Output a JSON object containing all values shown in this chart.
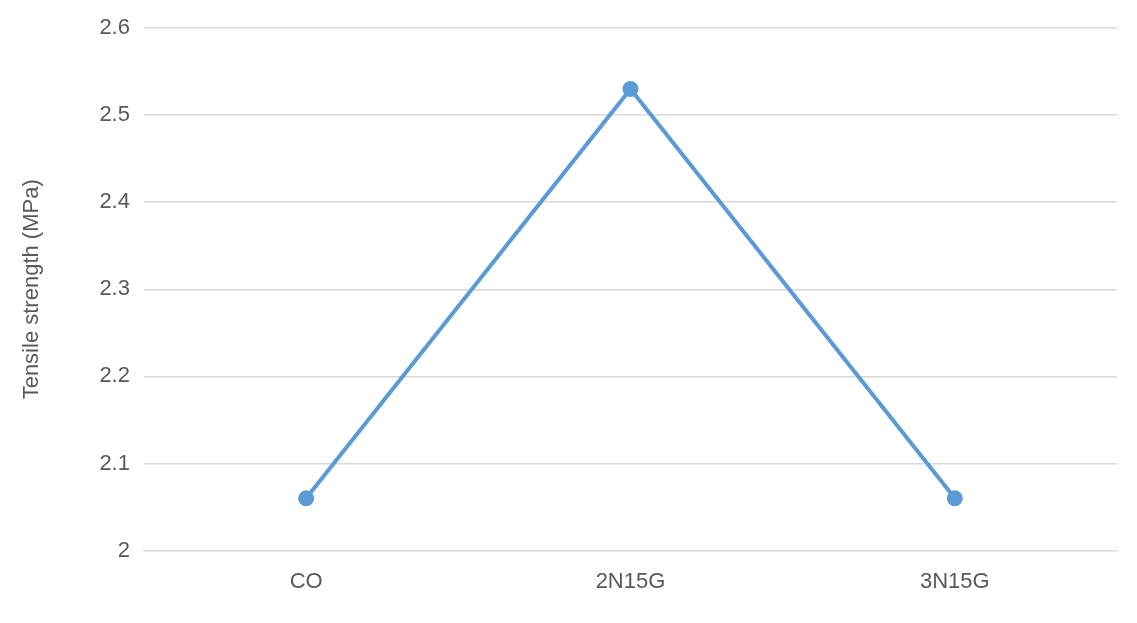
{
  "chart_data": {
    "type": "line",
    "ylabel": "Tensile strength (MPa)",
    "categories": [
      "CO",
      "2N15G",
      "3N15G"
    ],
    "series": [
      {
        "color": "#5b9bd5",
        "values": [
          2.06,
          2.53,
          2.06
        ]
      }
    ],
    "ylim": [
      2,
      2.6
    ],
    "yticks": [
      2,
      2.1,
      2.2,
      2.3,
      2.4,
      2.5,
      2.6
    ],
    "grid": "y",
    "legend": false,
    "marker": "circle",
    "line_style": "solid"
  }
}
